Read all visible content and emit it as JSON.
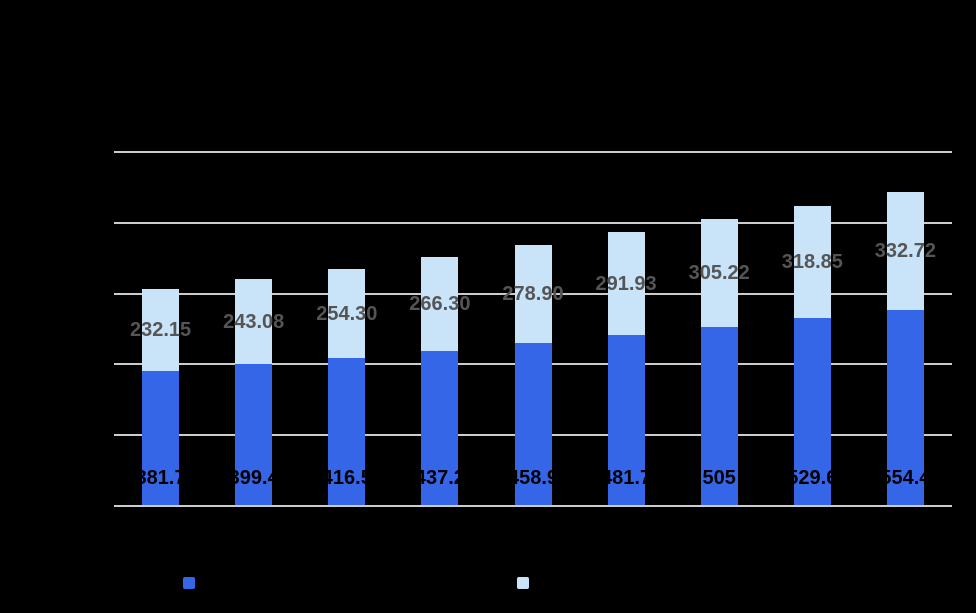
{
  "chart_data": {
    "type": "bar",
    "stacked": true,
    "title": "",
    "xlabel": "",
    "ylabel": "",
    "categories": [
      "",
      "",
      "",
      "",
      "",
      "",
      "",
      "",
      ""
    ],
    "series": [
      {
        "name": "",
        "color": "#3666E8",
        "label_color": "#000000",
        "values": [
          381.7,
          399.4,
          416.5,
          437.2,
          458.9,
          481.7,
          505,
          529.6,
          554.4
        ],
        "labels": [
          "381.7",
          "399.4",
          "416.5",
          "437.2",
          "458.9",
          "481.7",
          "505",
          "529.6",
          "554.4"
        ]
      },
      {
        "name": "",
        "color": "#C9E3F9",
        "label_color": "#555555",
        "values": [
          232.15,
          243.08,
          254.3,
          266.3,
          278.9,
          291.93,
          305.22,
          318.85,
          332.72
        ],
        "labels": [
          "232.15",
          "243.08",
          "254.30",
          "266.30",
          "278.90",
          "291.93",
          "305.22",
          "318.85",
          "332.72"
        ]
      }
    ],
    "ylim": [
      0,
      1000
    ],
    "y_gridline_step": 200,
    "grid": true,
    "gridline_color": "#CCCCCC",
    "background_color": "#000000",
    "legend_position": "bottom"
  },
  "legend": {
    "items": [
      {
        "swatch_color": "#3666E8",
        "label": ""
      },
      {
        "swatch_color": "#C9E3F9",
        "label": ""
      }
    ]
  }
}
